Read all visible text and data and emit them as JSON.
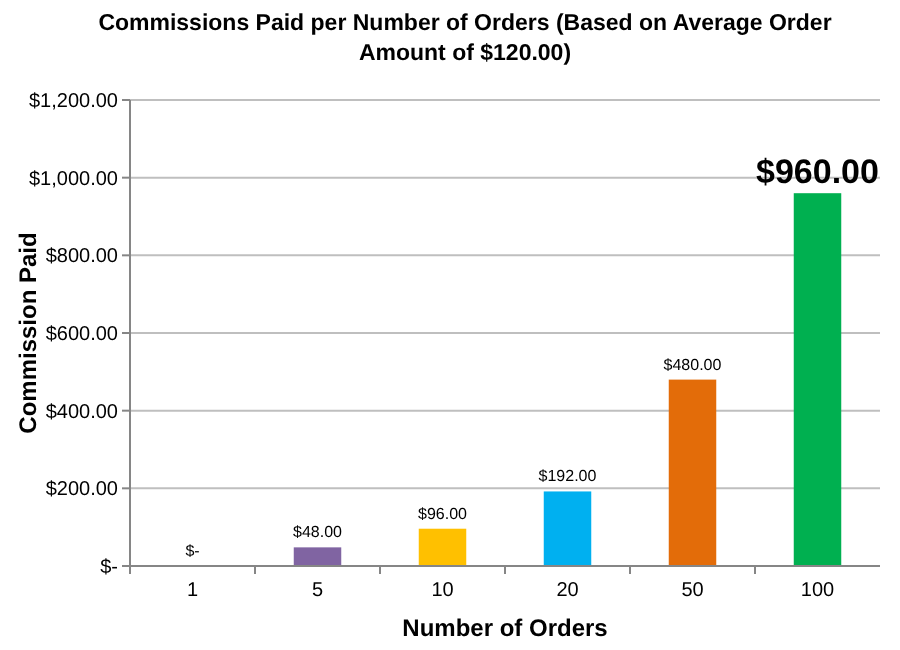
{
  "chart_data": {
    "type": "bar",
    "title": "Commissions Paid per Number of Orders (Based on Average Order Amount of $120.00)",
    "xlabel": "Number of Orders",
    "ylabel": "Commission Paid",
    "categories": [
      "1",
      "5",
      "10",
      "20",
      "50",
      "100"
    ],
    "values": [
      0,
      48,
      96,
      192,
      480,
      960
    ],
    "colors": [
      "#4f81bd",
      "#8064a2",
      "#ffc000",
      "#00b0f0",
      "#e36c09",
      "#00b050"
    ],
    "value_labels": [
      "$-",
      "$48.00",
      "$96.00",
      "$192.00",
      "$480.00",
      "$960.00"
    ],
    "ylim": [
      0,
      1200
    ],
    "yticks": [
      {
        "value": 0,
        "label": "$-"
      },
      {
        "value": 200,
        "label": "$200.00"
      },
      {
        "value": 400,
        "label": "$400.00"
      },
      {
        "value": 600,
        "label": "$600.00"
      },
      {
        "value": 800,
        "label": "$800.00"
      },
      {
        "value": 1000,
        "label": "$1,000.00"
      },
      {
        "value": 1200,
        "label": "$1,200.00"
      }
    ],
    "grid": "y"
  }
}
